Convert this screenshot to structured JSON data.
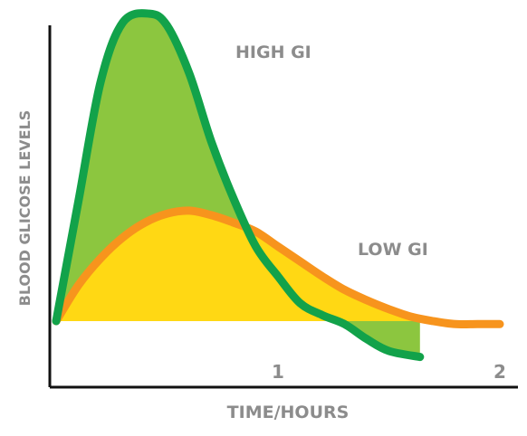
{
  "chart_data": {
    "type": "area",
    "title": "",
    "xlabel": "TIME/HOURS",
    "ylabel": "BLOOD GLICOSE LEVELS",
    "xlim": [
      0,
      2
    ],
    "ylim": [
      -0.2,
      1.0
    ],
    "x_ticks": [
      "1",
      "2"
    ],
    "grid": false,
    "colors": {
      "axis": "#111111",
      "label": "#8c8c8c",
      "high_line": "#12a24a",
      "high_fill": "#8cc63f",
      "low_line": "#f7941d",
      "low_fill": "#ffd814"
    },
    "series": [
      {
        "name": "HIGH GI",
        "x": [
          0,
          0.1,
          0.2,
          0.3,
          0.42,
          0.5,
          0.6,
          0.7,
          0.8,
          0.9,
          1.0,
          1.1,
          1.2,
          1.3,
          1.4,
          1.5,
          1.64
        ],
        "y": [
          0,
          0.4,
          0.8,
          1.0,
          1.03,
          0.99,
          0.83,
          0.6,
          0.41,
          0.25,
          0.15,
          0.06,
          0.02,
          -0.01,
          -0.06,
          -0.1,
          -0.12
        ]
      },
      {
        "name": "LOW GI",
        "x": [
          0,
          0.1,
          0.2,
          0.3,
          0.4,
          0.5,
          0.6,
          0.7,
          0.8,
          0.9,
          1.0,
          1.1,
          1.2,
          1.3,
          1.4,
          1.5,
          1.6,
          1.7,
          1.8,
          1.9,
          2.0
        ],
        "y": [
          0,
          0.12,
          0.21,
          0.28,
          0.33,
          0.36,
          0.37,
          0.355,
          0.33,
          0.3,
          0.25,
          0.2,
          0.15,
          0.105,
          0.07,
          0.04,
          0.015,
          0.0,
          -0.01,
          -0.01,
          -0.01
        ]
      }
    ]
  }
}
